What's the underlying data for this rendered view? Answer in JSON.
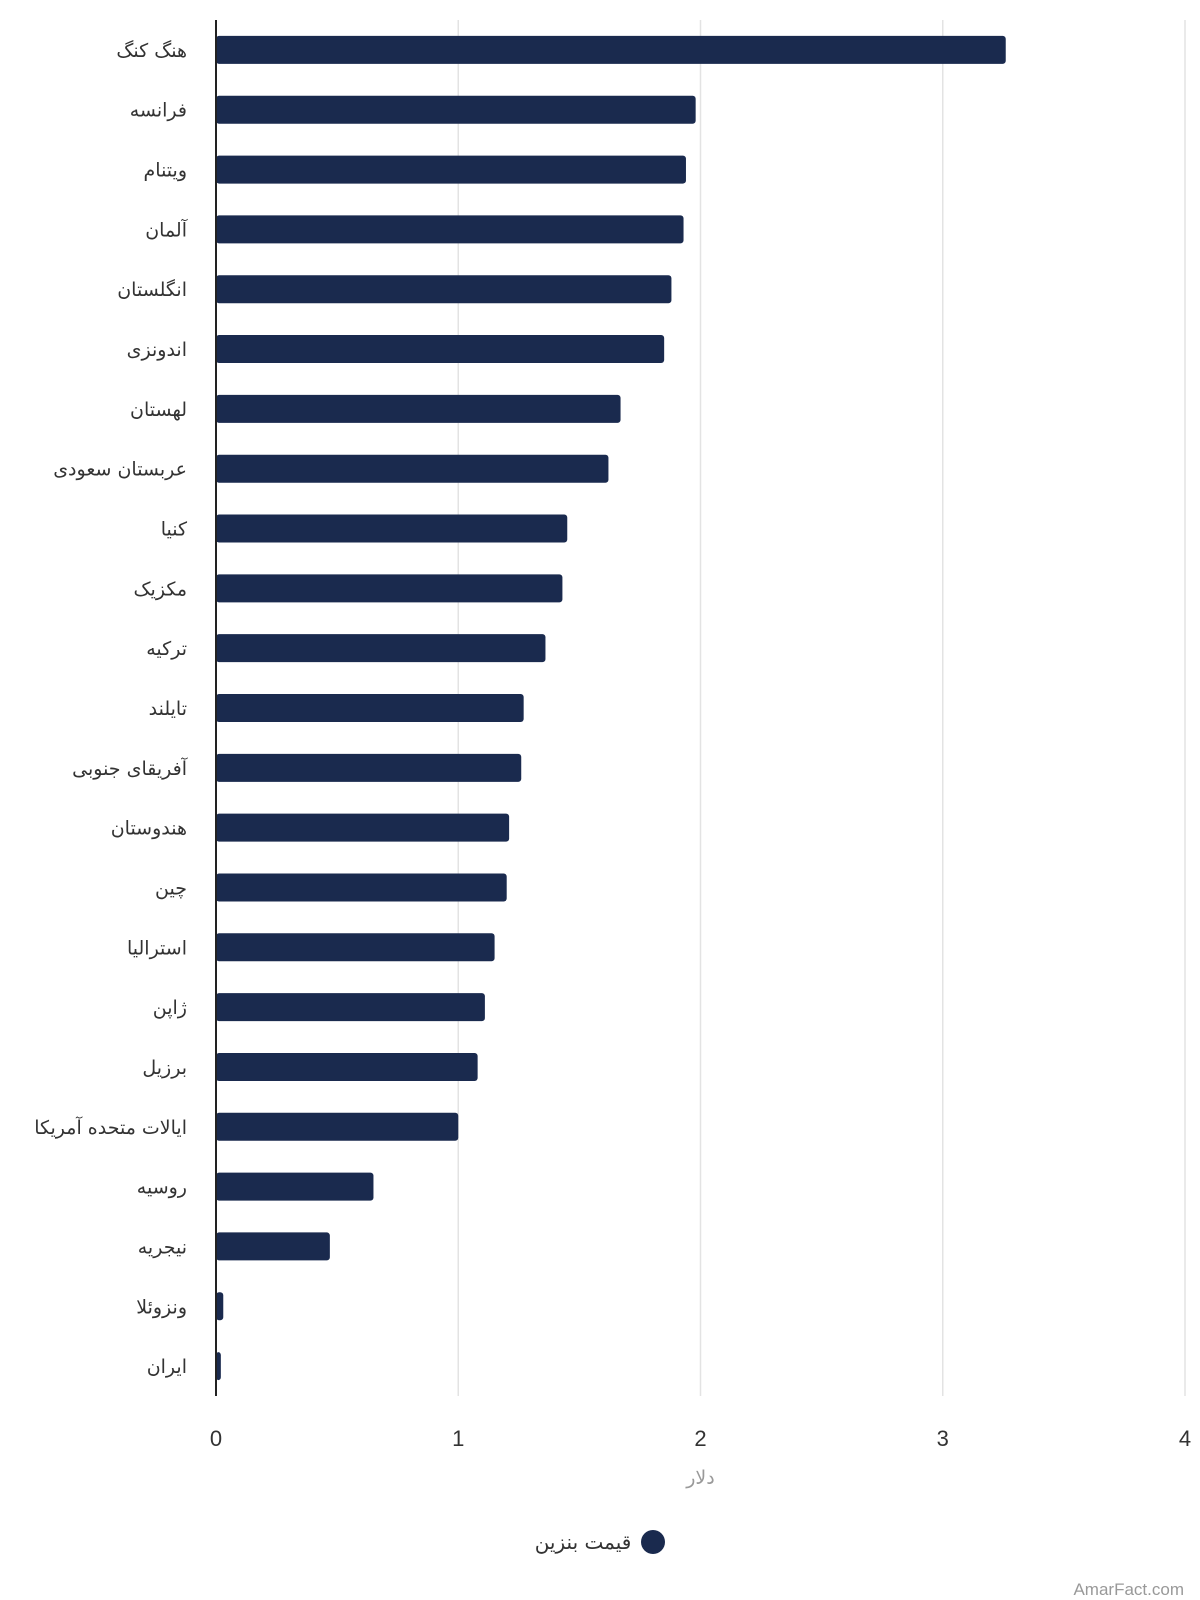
{
  "chart_data": {
    "type": "bar",
    "orientation": "horizontal",
    "categories": [
      "هنگ کنگ",
      "فرانسه",
      "ویتنام",
      "آلمان",
      "انگلستان",
      "اندونزی",
      "لهستان",
      "عربستان سعودی",
      "کنیا",
      "مکزیک",
      "ترکیه",
      "تایلند",
      "آفریقای جنوبی",
      "هندوستان",
      "چین",
      "استرالیا",
      "ژاپن",
      "برزیل",
      "ایالات متحده آمریکا",
      "روسیه",
      "نیجریه",
      "ونزوئلا",
      "ایران"
    ],
    "series": [
      {
        "name": "قیمت بنزین",
        "color": "#1a2a4e",
        "values": [
          3.26,
          1.98,
          1.94,
          1.93,
          1.88,
          1.85,
          1.67,
          1.62,
          1.45,
          1.43,
          1.36,
          1.27,
          1.26,
          1.21,
          1.2,
          1.15,
          1.11,
          1.08,
          1.0,
          0.65,
          0.47,
          0.03,
          0.02
        ]
      }
    ],
    "xlabel": "دلار",
    "ylabel": "",
    "xlim": [
      0,
      4
    ],
    "xticks": [
      "0",
      "1",
      "2",
      "3",
      "4"
    ],
    "grid": true,
    "legend_position": "bottom-center"
  },
  "credit": "AmarFact.com"
}
